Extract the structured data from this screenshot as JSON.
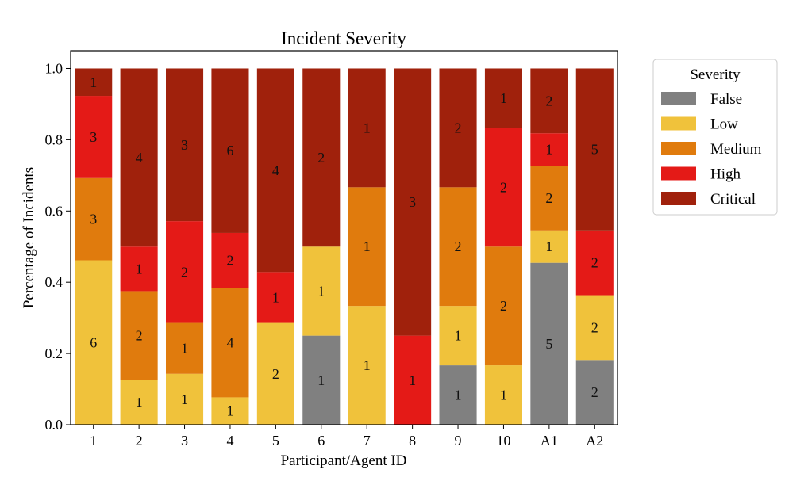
{
  "chart_data": {
    "type": "bar",
    "stacked": true,
    "normalized": true,
    "title": "Incident Severity",
    "xlabel": "Participant/Agent ID",
    "ylabel": "Percentage of Incidents",
    "ylim": [
      0,
      1.05
    ],
    "yticks": [
      "0.0",
      "0.2",
      "0.4",
      "0.6",
      "0.8",
      "1.0"
    ],
    "categories": [
      "1",
      "2",
      "3",
      "4",
      "5",
      "6",
      "7",
      "8",
      "9",
      "10",
      "A1",
      "A2"
    ],
    "legend": {
      "title": "Severity",
      "placement": "outside-right"
    },
    "series": [
      {
        "name": "False",
        "color": "#808080",
        "counts": [
          0,
          0,
          0,
          0,
          0,
          1,
          0,
          0,
          1,
          0,
          5,
          2
        ]
      },
      {
        "name": "Low",
        "color": "#f0c23b",
        "counts": [
          6,
          1,
          1,
          1,
          2,
          1,
          1,
          0,
          1,
          1,
          1,
          2
        ]
      },
      {
        "name": "Medium",
        "color": "#e07b0d",
        "counts": [
          3,
          2,
          1,
          4,
          0,
          0,
          1,
          0,
          2,
          2,
          2,
          0
        ]
      },
      {
        "name": "High",
        "color": "#e41a17",
        "counts": [
          3,
          1,
          2,
          2,
          1,
          0,
          0,
          1,
          0,
          2,
          1,
          2
        ]
      },
      {
        "name": "Critical",
        "color": "#a0210c",
        "counts": [
          1,
          4,
          3,
          6,
          4,
          2,
          1,
          3,
          2,
          1,
          2,
          5
        ]
      }
    ]
  }
}
